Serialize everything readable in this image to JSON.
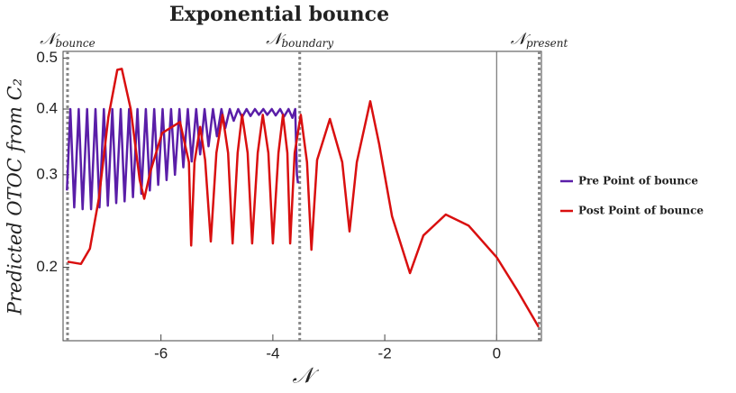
{
  "chart_data": {
    "type": "line",
    "title": "Exponential bounce",
    "x_label": "𝒩",
    "y_label": "Predicted OTOC from C₂",
    "yscale": "log",
    "xlim": [
      -7.75,
      0.8
    ],
    "ylim": [
      0.145,
      0.515
    ],
    "xticks": [
      -6,
      -4,
      -2,
      0
    ],
    "yticks": [
      0.2,
      0.3,
      0.4,
      0.5
    ],
    "vlines": [
      {
        "x": -7.67,
        "label": "𝒩",
        "subscript": "bounce",
        "style": "dotted"
      },
      {
        "x": -3.52,
        "label": "𝒩",
        "subscript": "boundary",
        "style": "dotted"
      },
      {
        "x": 0,
        "style": "solid"
      },
      {
        "x": 0.76,
        "label": "𝒩",
        "subscript": "present",
        "style": "dotted"
      }
    ],
    "series": [
      {
        "name": "Pre Point of bounce",
        "color": "#5a1ea8",
        "x": [
          -7.68,
          -7.62,
          -7.55,
          -7.47,
          -7.4,
          -7.32,
          -7.25,
          -7.17,
          -7.1,
          -7.02,
          -6.95,
          -6.87,
          -6.8,
          -6.72,
          -6.65,
          -6.57,
          -6.5,
          -6.42,
          -6.35,
          -6.27,
          -6.2,
          -6.12,
          -6.05,
          -5.97,
          -5.9,
          -5.82,
          -5.75,
          -5.67,
          -5.6,
          -5.52,
          -5.45,
          -5.37,
          -5.3,
          -5.22,
          -5.15,
          -5.07,
          -5.0,
          -4.92,
          -4.85,
          -4.77,
          -4.7,
          -4.62,
          -4.55,
          -4.47,
          -4.4,
          -4.32,
          -4.25,
          -4.17,
          -4.1,
          -4.02,
          -3.95,
          -3.87,
          -3.8,
          -3.72,
          -3.65,
          -3.6,
          -3.57,
          -3.55
        ],
        "values": [
          0.28,
          0.4,
          0.26,
          0.4,
          0.258,
          0.4,
          0.258,
          0.4,
          0.26,
          0.4,
          0.262,
          0.4,
          0.265,
          0.4,
          0.267,
          0.4,
          0.272,
          0.4,
          0.276,
          0.4,
          0.28,
          0.4,
          0.287,
          0.4,
          0.293,
          0.4,
          0.3,
          0.4,
          0.31,
          0.4,
          0.318,
          0.4,
          0.328,
          0.4,
          0.34,
          0.4,
          0.355,
          0.4,
          0.368,
          0.4,
          0.38,
          0.4,
          0.386,
          0.4,
          0.388,
          0.4,
          0.39,
          0.4,
          0.39,
          0.4,
          0.389,
          0.4,
          0.387,
          0.4,
          0.385,
          0.4,
          0.3,
          0.289
        ]
      },
      {
        "name": "Post Point of bounce",
        "color": "#d90f0f",
        "x": [
          -7.67,
          -7.43,
          -7.27,
          -7.11,
          -6.94,
          -6.78,
          -6.7,
          -6.54,
          -6.38,
          -6.3,
          -6.19,
          -5.98,
          -5.66,
          -5.5,
          -5.46,
          -5.4,
          -5.3,
          -5.21,
          -5.11,
          -5.01,
          -4.9,
          -4.8,
          -4.72,
          -4.63,
          -4.55,
          -4.45,
          -4.37,
          -4.27,
          -4.18,
          -4.08,
          -4.0,
          -3.9,
          -3.82,
          -3.74,
          -3.69,
          -3.61,
          -3.5,
          -3.39,
          -3.31,
          -3.21,
          -2.98,
          -2.76,
          -2.63,
          -2.5,
          -2.26,
          -2.1,
          -1.87,
          -1.55,
          -1.31,
          -0.91,
          -0.5,
          0.0,
          0.38,
          0.75
        ],
        "values": [
          0.205,
          0.203,
          0.217,
          0.27,
          0.386,
          0.475,
          0.477,
          0.4,
          0.293,
          0.27,
          0.304,
          0.36,
          0.378,
          0.317,
          0.22,
          0.317,
          0.37,
          0.32,
          0.224,
          0.33,
          0.39,
          0.33,
          0.222,
          0.33,
          0.39,
          0.33,
          0.222,
          0.33,
          0.39,
          0.33,
          0.222,
          0.33,
          0.39,
          0.33,
          0.222,
          0.33,
          0.39,
          0.317,
          0.216,
          0.32,
          0.383,
          0.317,
          0.234,
          0.317,
          0.414,
          0.343,
          0.25,
          0.195,
          0.23,
          0.252,
          0.24,
          0.209,
          0.18,
          0.154
        ]
      }
    ]
  }
}
